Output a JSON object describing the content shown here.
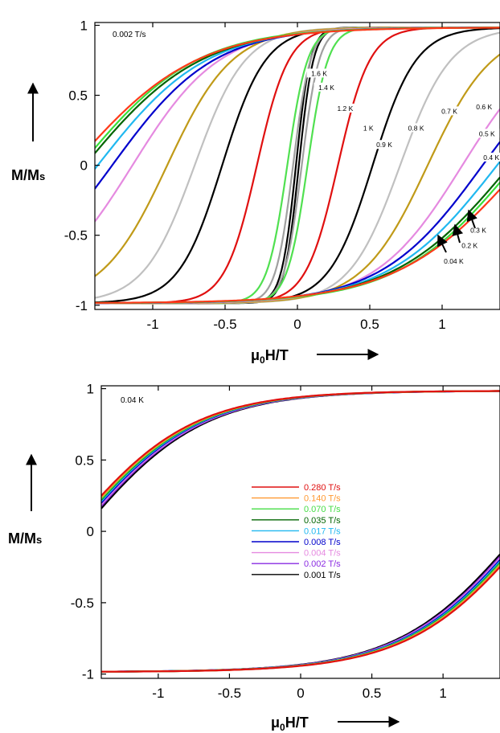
{
  "chart_data": [
    {
      "type": "line",
      "annotation": "0.002 T/s",
      "xlabel": "μ0H/T",
      "ylabel": "M/Ms",
      "xlim": [
        -1.4,
        1.4
      ],
      "ylim": [
        -1.03,
        1.02
      ],
      "xticks": [
        -1,
        -0.5,
        0,
        0.5,
        1
      ],
      "xtick_labels": [
        "-1",
        "-0.5",
        "0",
        "0.5",
        "1"
      ],
      "yticks": [
        1,
        0.5,
        0,
        -0.5,
        -1
      ],
      "ytick_labels": [
        "1",
        "0.5",
        "0",
        "-0.5",
        "-1"
      ],
      "grid": false,
      "series": [
        {
          "name": "0.04 K",
          "color": "#ff3a1a",
          "coercive_field": 1.55,
          "width": 0.85
        },
        {
          "name": "0.2 K",
          "color": "#3adf3a",
          "coercive_field": 1.5,
          "width": 0.8
        },
        {
          "name": "0.3 K",
          "color": "#006400",
          "coercive_field": 1.47,
          "width": 0.8
        },
        {
          "name": "0.4 K",
          "color": "#20b8f0",
          "coercive_field": 1.38,
          "width": 0.75
        },
        {
          "name": "0.5 K",
          "color": "#0000cc",
          "coercive_field": 1.28,
          "width": 0.7
        },
        {
          "name": "0.6 K",
          "color": "#e58ae0",
          "coercive_field": 1.14,
          "width": 0.6
        },
        {
          "name": "0.7 K",
          "color": "#c09a18",
          "coercive_field": 0.9,
          "width": 0.45
        },
        {
          "name": "0.8 K",
          "color": "#c0c0c0",
          "coercive_field": 0.71,
          "width": 0.35
        },
        {
          "name": "0.9 K",
          "color": "#000000",
          "coercive_field": 0.52,
          "width": 0.3
        },
        {
          "name": "1 K",
          "color": "#e01010",
          "coercive_field": 0.28,
          "width": 0.22
        },
        {
          "name": "1.2 K",
          "color": "#50e050",
          "coercive_field": 0.07,
          "width": 0.14
        },
        {
          "name": "1.4 K",
          "color": "#a0a0a0",
          "coercive_field": 0.03,
          "width": 0.12
        },
        {
          "name": "1.6 K",
          "color": "#000000",
          "coercive_field": 0.01,
          "width": 0.1
        }
      ],
      "labels": [
        {
          "text": "1.6 K",
          "x": 0.15,
          "y": 0.65
        },
        {
          "text": "1.4 K",
          "x": 0.2,
          "y": 0.55
        },
        {
          "text": "1.2 K",
          "x": 0.33,
          "y": 0.4
        },
        {
          "text": "1 K",
          "x": 0.49,
          "y": 0.26
        },
        {
          "text": "0.9 K",
          "x": 0.6,
          "y": 0.14
        },
        {
          "text": "0.8 K",
          "x": 0.82,
          "y": 0.26
        },
        {
          "text": "0.7 K",
          "x": 1.05,
          "y": 0.38
        },
        {
          "text": "0.6 K",
          "x": 1.29,
          "y": 0.41
        },
        {
          "text": "0.5 K",
          "x": 1.31,
          "y": 0.22
        },
        {
          "text": "0.4 K",
          "x": 1.34,
          "y": 0.05
        },
        {
          "text": "0.3 K",
          "x": 1.25,
          "y": -0.47
        },
        {
          "text": "0.2 K",
          "x": 1.19,
          "y": -0.58
        },
        {
          "text": "0.04 K",
          "x": 1.08,
          "y": -0.69
        }
      ]
    },
    {
      "type": "line",
      "annotation": "0.04 K",
      "xlabel": "μ0H/T",
      "ylabel": "M/Ms",
      "xlim": [
        -1.4,
        1.4
      ],
      "ylim": [
        -1.03,
        1.02
      ],
      "xticks": [
        -1,
        -0.5,
        0,
        0.5,
        1
      ],
      "xtick_labels": [
        "-1",
        "-0.5",
        "0",
        "0.5",
        "1"
      ],
      "yticks": [
        1,
        0.5,
        0,
        -0.5,
        -1
      ],
      "ytick_labels": [
        "1",
        "0.5",
        "0",
        "-0.5",
        "-1"
      ],
      "grid": false,
      "legend": "center",
      "series": [
        {
          "name": "0.280 T/s",
          "color": "#e01010",
          "coercive_field": 1.62,
          "width": 0.85
        },
        {
          "name": "0.140 T/s",
          "color": "#ff9933",
          "coercive_field": 1.61,
          "width": 0.85
        },
        {
          "name": "0.070 T/s",
          "color": "#44dd44",
          "coercive_field": 1.6,
          "width": 0.85
        },
        {
          "name": "0.035 T/s",
          "color": "#006400",
          "coercive_field": 1.595,
          "width": 0.85
        },
        {
          "name": "0.017 T/s",
          "color": "#20b8f0",
          "coercive_field": 1.585,
          "width": 0.85
        },
        {
          "name": "0.008 T/s",
          "color": "#0000cc",
          "coercive_field": 1.575,
          "width": 0.85
        },
        {
          "name": "0.004 T/s",
          "color": "#e58ae0",
          "coercive_field": 1.565,
          "width": 0.85
        },
        {
          "name": "0.002 T/s",
          "color": "#8a2be2",
          "coercive_field": 1.555,
          "width": 0.85
        },
        {
          "name": "0.001 T/s",
          "color": "#000000",
          "coercive_field": 1.54,
          "width": 0.85
        }
      ]
    }
  ]
}
